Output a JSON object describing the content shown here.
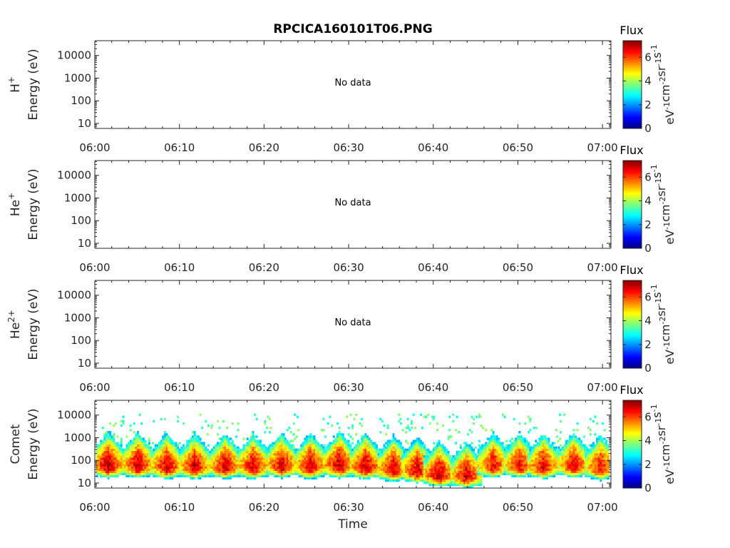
{
  "title": "RPCICA160101T06.PNG",
  "xlabel": "Time",
  "x_ticks": [
    "06:00",
    "06:10",
    "06:20",
    "06:30",
    "06:40",
    "06:50",
    "07:00"
  ],
  "y_ticks": [
    "10",
    "100",
    "1000",
    "10000"
  ],
  "colorbar": {
    "label": "Flux",
    "units_parts": [
      "eV",
      "-1",
      "cm",
      "-2",
      "sr",
      "-1",
      "s",
      "-1"
    ],
    "ticks": [
      "0",
      "2",
      "4",
      "6"
    ],
    "range": [
      0,
      7.4
    ],
    "colormap": "jet"
  },
  "panels": [
    {
      "species": "H",
      "charge": "+",
      "ylabel": "Energy (eV)",
      "message": "No data"
    },
    {
      "species": "He",
      "charge": "+",
      "ylabel": "Energy (eV)",
      "message": "No data"
    },
    {
      "species": "He",
      "charge": "2+",
      "ylabel": "Energy (eV)",
      "message": "No data"
    },
    {
      "species": "Comet",
      "charge": "",
      "ylabel": "Energy (eV)",
      "message": ""
    }
  ],
  "chart_data": {
    "type": "heatmap",
    "title": "RPCICA160101T06.PNG",
    "xlabel": "Time",
    "x_range": [
      "06:00",
      "07:01"
    ],
    "ylabel": "Energy (eV)",
    "y_scale": "log",
    "y_range": [
      6,
      45000
    ],
    "colorbar_range": [
      0,
      7.4
    ],
    "series": [
      {
        "name": "Comet",
        "bursts_minutes": [
          1.5,
          5.0,
          8.4,
          11.7,
          15.3,
          18.6,
          22.0,
          25.4,
          28.8,
          31.9,
          35.2,
          38.0,
          40.6,
          43.8,
          47.0,
          50.1,
          52.9,
          56.5,
          59.7
        ],
        "bursts_peak_energy_eV": [
          50,
          50,
          45,
          45,
          45,
          45,
          50,
          45,
          50,
          45,
          35,
          30,
          20,
          18,
          50,
          50,
          45,
          50,
          40
        ],
        "bursts_peak_flux": [
          7.0,
          6.9,
          6.8,
          6.8,
          6.8,
          6.8,
          6.8,
          6.8,
          7.0,
          6.9,
          6.8,
          6.8,
          6.9,
          6.8,
          6.6,
          6.6,
          6.7,
          6.7,
          6.6
        ]
      }
    ]
  }
}
